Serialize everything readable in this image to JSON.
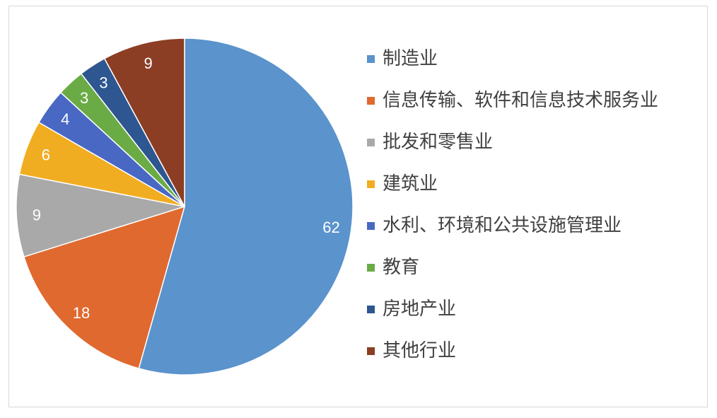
{
  "chart_data": {
    "type": "pie",
    "title": "",
    "start_angle": "top, clockwise",
    "legend_position": "right",
    "categories": [
      "制造业",
      "信息传输、软件和信息技术服务业",
      "批发和零售业",
      "建筑业",
      "水利、环境和公共设施管理业",
      "教育",
      "房地产业",
      "其他行业"
    ],
    "values": [
      62,
      18,
      9,
      6,
      4,
      3,
      3,
      9
    ],
    "data_labels": [
      "62",
      "18",
      "9",
      "6",
      "4",
      "3",
      "3",
      "9"
    ],
    "colors": [
      "#5b93cc",
      "#e0692f",
      "#a9a9a9",
      "#f1ad22",
      "#4868c4",
      "#6aab45",
      "#2e5690",
      "#8b3e24"
    ]
  }
}
